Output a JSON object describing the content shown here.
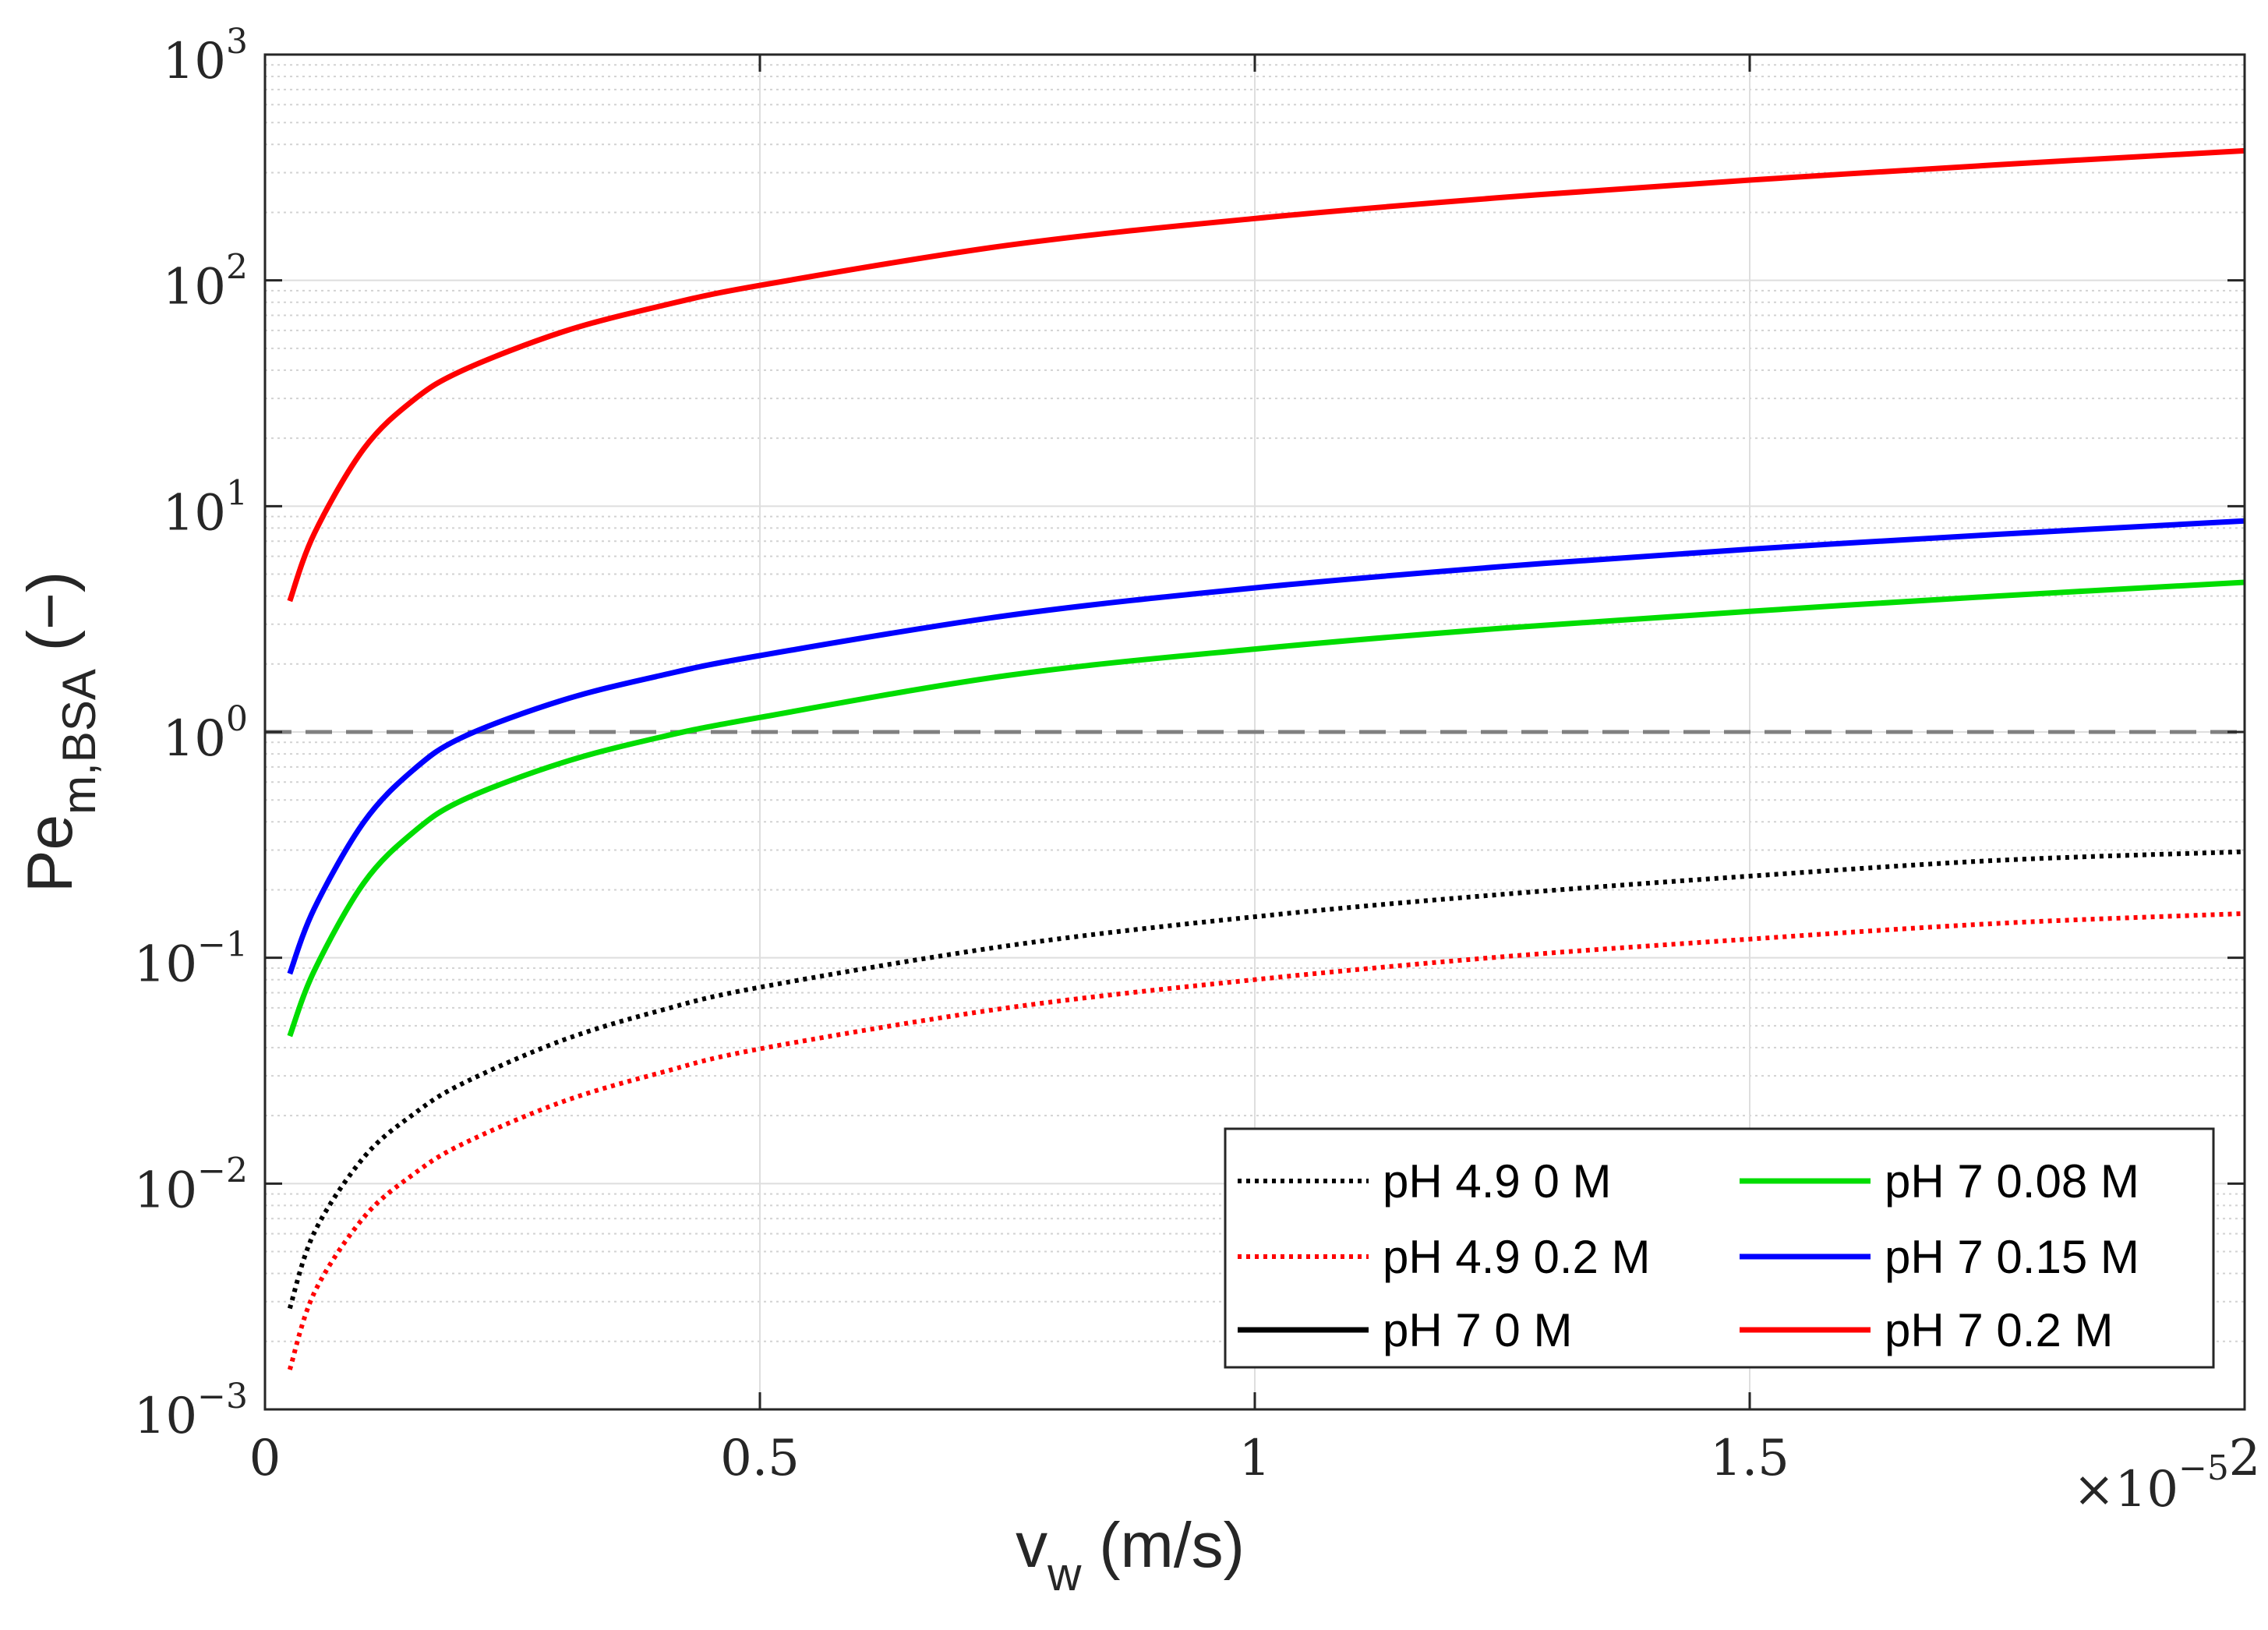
{
  "chart_data": {
    "type": "line",
    "xscale": "linear",
    "yscale": "log",
    "xlim": [
      0,
      2
    ],
    "ylim": [
      0.001,
      1000
    ],
    "x_multiplier_label": {
      "base": "×10",
      "exponent": "−5"
    },
    "xlabel": {
      "main": "v",
      "sub": "w",
      "rest": " (m/s)"
    },
    "ylabel": {
      "main": "Pe",
      "sub": "m,BSA",
      "rest": " (−)"
    },
    "x_ticks": [
      {
        "value": 0,
        "label": "0"
      },
      {
        "value": 0.5,
        "label": "0.5"
      },
      {
        "value": 1,
        "label": "1"
      },
      {
        "value": 1.5,
        "label": "1.5"
      },
      {
        "value": 2,
        "label": "2"
      }
    ],
    "y_ticks": [
      {
        "value": 0.001,
        "base": "10",
        "exp": "−3"
      },
      {
        "value": 0.01,
        "base": "10",
        "exp": "−2"
      },
      {
        "value": 0.1,
        "base": "10",
        "exp": "−1"
      },
      {
        "value": 1,
        "base": "10",
        "exp": "0"
      },
      {
        "value": 10,
        "base": "10",
        "exp": "1"
      },
      {
        "value": 100,
        "base": "10",
        "exp": "2"
      },
      {
        "value": 1000,
        "base": "10",
        "exp": "3"
      }
    ],
    "reference_line": {
      "y": 1,
      "style": "dashed",
      "color": "#808080"
    },
    "grid": true,
    "legend_position": "bottom-right",
    "x_sample": [
      0.025,
      0.05,
      0.1,
      0.15,
      0.2,
      0.3,
      0.4,
      0.5,
      0.75,
      1.0,
      1.25,
      1.5,
      1.75,
      2.0
    ],
    "series": [
      {
        "name": "pH 4.9 0 M",
        "color": "#000000",
        "style": "dotted",
        "values": [
          0.0028,
          0.0061,
          0.0131,
          0.0203,
          0.0278,
          0.043,
          0.0585,
          0.074,
          0.113,
          0.152,
          0.191,
          0.23,
          0.27,
          0.295
        ]
      },
      {
        "name": "pH 4.9 0.2 M",
        "color": "#ff0000",
        "style": "dotted",
        "values": [
          0.0015,
          0.0033,
          0.0071,
          0.011,
          0.015,
          0.023,
          0.031,
          0.0395,
          0.06,
          0.08,
          0.101,
          0.121,
          0.142,
          0.157
        ]
      },
      {
        "name": "pH 7 0 M",
        "color": "#000000",
        "style": "solid",
        "values": []
      },
      {
        "name": "pH 7 0.08 M",
        "color": "#00dd00",
        "style": "solid",
        "values": [
          0.045,
          0.088,
          0.215,
          0.36,
          0.5,
          0.73,
          0.95,
          1.16,
          1.78,
          2.33,
          2.88,
          3.42,
          4.0,
          4.6
        ]
      },
      {
        "name": "pH 7 0.15 M",
        "color": "#0000ff",
        "style": "solid",
        "values": [
          0.085,
          0.166,
          0.4,
          0.68,
          0.95,
          1.38,
          1.78,
          2.18,
          3.28,
          4.35,
          5.4,
          6.45,
          7.5,
          8.6
        ]
      },
      {
        "name": "pH 7 0.2 M",
        "color": "#ff0000",
        "style": "solid",
        "values": [
          3.8,
          7.6,
          18.0,
          29.5,
          40.0,
          59.0,
          77.0,
          95.0,
          143.0,
          188.0,
          233.0,
          278.0,
          325.0,
          375.0
        ]
      }
    ]
  }
}
